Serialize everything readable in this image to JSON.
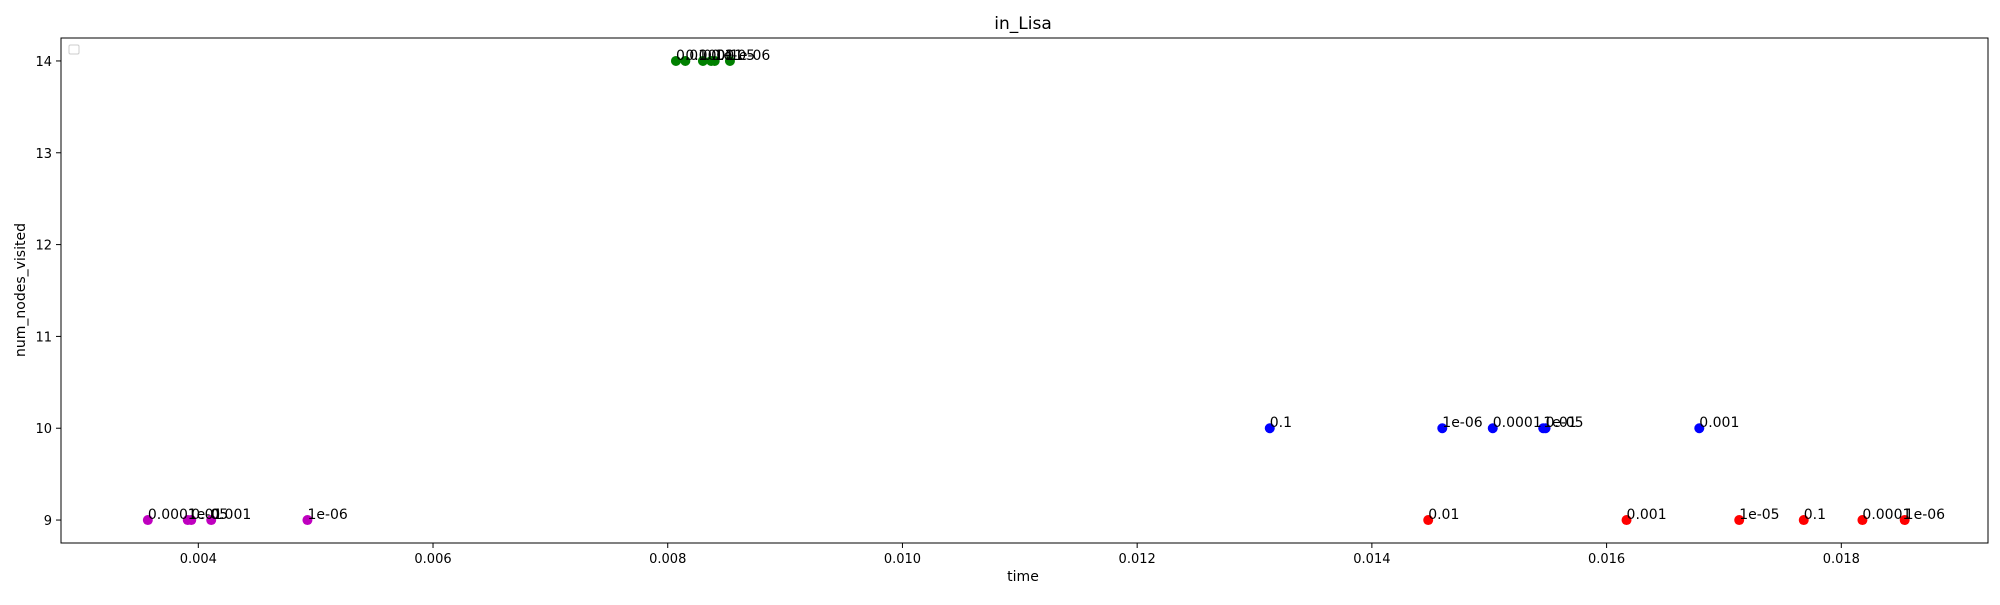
{
  "chart_data": {
    "type": "scatter",
    "title": "in_Lisa",
    "xlabel": "time",
    "ylabel": "num_nodes_visited",
    "xlim": [
      0.00283,
      0.01925
    ],
    "ylim": [
      8.75,
      14.25
    ],
    "x_ticks": [
      "0.004",
      "0.006",
      "0.008",
      "0.010",
      "0.012",
      "0.014",
      "0.016",
      "0.018"
    ],
    "y_ticks": [
      "9",
      "10",
      "11",
      "12",
      "13",
      "14"
    ],
    "grid": false,
    "legend": {
      "placement": "top-left",
      "entries": []
    },
    "series": [
      {
        "color": "#bf00bf",
        "color_name": "cyan",
        "points": [
          {
            "x": 0.00357,
            "y": 9,
            "label": "0.0001"
          },
          {
            "x": 0.00391,
            "y": 9,
            "label": "1e-05"
          },
          {
            "x": 0.00394,
            "y": 9,
            "label": "0.01"
          },
          {
            "x": 0.00411,
            "y": 9,
            "label": "0.001"
          },
          {
            "x": 0.00493,
            "y": 9,
            "label": "1e-06"
          }
        ]
      },
      {
        "color": "#008000",
        "color_name": "green",
        "points": [
          {
            "x": 0.00807,
            "y": 14,
            "label": "0.01"
          },
          {
            "x": 0.00815,
            "y": 14,
            "label": "0.0001"
          },
          {
            "x": 0.0083,
            "y": 14,
            "label": "0.001"
          },
          {
            "x": 0.00837,
            "y": 14,
            "label": "0.1"
          },
          {
            "x": 0.0084,
            "y": 14,
            "label": "1e-05"
          },
          {
            "x": 0.00853,
            "y": 14,
            "label": "1e-06"
          }
        ]
      },
      {
        "color": "#0000ff",
        "color_name": "blue",
        "points": [
          {
            "x": 0.01313,
            "y": 10,
            "label": "0.1"
          },
          {
            "x": 0.0146,
            "y": 10,
            "label": "1e-06"
          },
          {
            "x": 0.01503,
            "y": 10,
            "label": "0.0001"
          },
          {
            "x": 0.01546,
            "y": 10,
            "label": "1e-05"
          },
          {
            "x": 0.01548,
            "y": 10,
            "label": "0.01"
          },
          {
            "x": 0.01679,
            "y": 10,
            "label": "0.001"
          }
        ]
      },
      {
        "color": "#ff0000",
        "color_name": "red",
        "points": [
          {
            "x": 0.01448,
            "y": 9,
            "label": "0.01"
          },
          {
            "x": 0.01617,
            "y": 9,
            "label": "0.001"
          },
          {
            "x": 0.01713,
            "y": 9,
            "label": "1e-05"
          },
          {
            "x": 0.01768,
            "y": 9,
            "label": "0.1"
          },
          {
            "x": 0.01818,
            "y": 9,
            "label": "0.0001"
          },
          {
            "x": 0.01854,
            "y": 9,
            "label": "1e-06"
          }
        ]
      }
    ]
  }
}
